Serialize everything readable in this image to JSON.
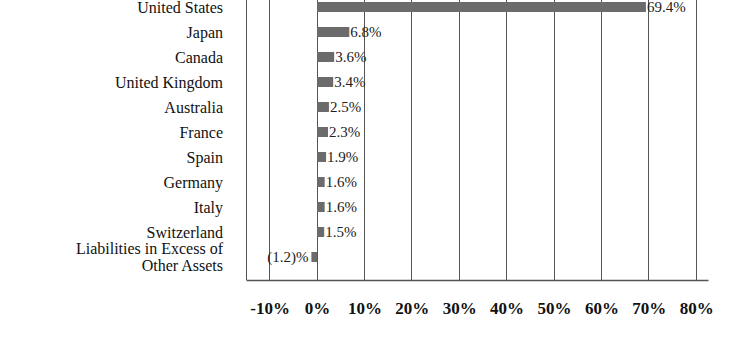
{
  "chart_data": {
    "type": "bar",
    "orientation": "horizontal",
    "categories": [
      "United States",
      "Japan",
      "Canada",
      "United Kingdom",
      "Australia",
      "France",
      "Spain",
      "Germany",
      "Italy",
      "Switzerland",
      "Liabilities in Excess of\nOther Assets"
    ],
    "values": [
      69.4,
      6.8,
      3.6,
      3.4,
      2.5,
      2.3,
      1.9,
      1.6,
      1.6,
      1.5,
      -1.2
    ],
    "value_labels": [
      "69.4%",
      "6.8%",
      "3.6%",
      "3.4%",
      "2.5%",
      "2.3%",
      "1.9%",
      "1.6%",
      "1.6%",
      "1.5%",
      "(1.2)%"
    ],
    "data_labels": true,
    "color": "#6b6b6b",
    "xlim": [
      -15,
      82.5
    ],
    "xticks": [
      {
        "value": -10,
        "label": "-10%"
      },
      {
        "value": 0,
        "label": "0%"
      },
      {
        "value": 10,
        "label": "10%"
      },
      {
        "value": 20,
        "label": "20%"
      },
      {
        "value": 30,
        "label": "30%"
      },
      {
        "value": 40,
        "label": "40%"
      },
      {
        "value": 50,
        "label": "50%"
      },
      {
        "value": 60,
        "label": "60%"
      },
      {
        "value": 70,
        "label": "70%"
      },
      {
        "value": 80,
        "label": "80%"
      }
    ],
    "grid": true
  }
}
